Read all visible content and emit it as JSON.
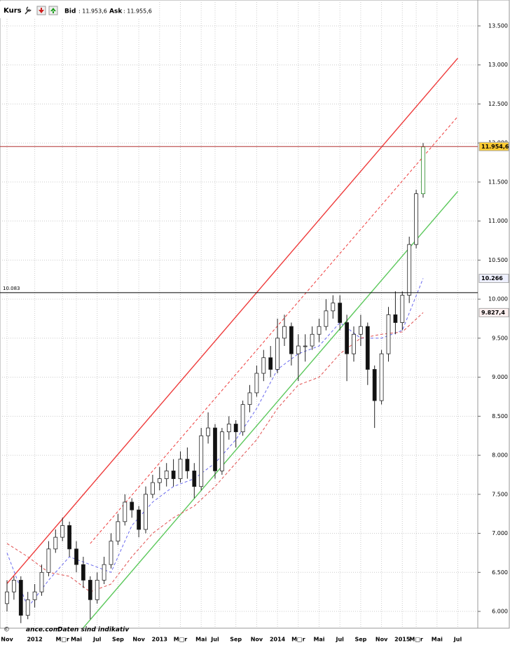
{
  "chart_data": {
    "type": "candlestick",
    "title": "Kurs",
    "bid_label": "Bid",
    "bid_value": ": 11.953,6",
    "ask_label": "Ask",
    "ask_value": ": 11.955,6",
    "source": "ance.com",
    "note": "Daten sind indikativ",
    "grid": true,
    "categories": [
      "Nov",
      null,
      null,
      null,
      "2012",
      null,
      null,
      null,
      "M□r",
      null,
      "Mai",
      null,
      null,
      "Jul",
      null,
      null,
      "Sep",
      null,
      null,
      "Nov",
      null,
      null,
      "2013",
      null,
      null,
      "M□r",
      null,
      null,
      "Mai",
      null,
      "Jul",
      null,
      null,
      "Sep",
      null,
      null,
      "Nov",
      null,
      null,
      "2014",
      null,
      null,
      "M□r",
      null,
      null,
      "Mai",
      null,
      null,
      "Jul",
      null,
      null,
      "Sep",
      null,
      null,
      "Nov",
      null,
      null,
      "2015",
      null,
      "M□r",
      null,
      null,
      "Mai",
      null,
      null,
      "Jul"
    ],
    "open": [
      6100,
      6250,
      6400,
      5950,
      6150,
      6250,
      6500,
      6800,
      6950,
      7100,
      6800,
      6600,
      6400,
      6150,
      6400,
      6600,
      6900,
      7150,
      7400,
      7300,
      7050,
      7500,
      7650,
      7700,
      7800,
      7700,
      7950,
      7800,
      7600,
      8250,
      8350,
      7800,
      8300,
      8400,
      8300,
      8650,
      8800,
      9050,
      9250,
      9100,
      9500,
      9650,
      9300,
      9400,
      9400,
      9550,
      9650,
      9850,
      9950,
      9700,
      9300,
      9550,
      9650,
      9100,
      8700,
      9300,
      9800,
      9700,
      10050,
      10700,
      11350,
      null,
      null,
      null,
      null,
      null
    ],
    "high": [
      6400,
      6450,
      6450,
      6250,
      6350,
      6600,
      6900,
      7050,
      7200,
      7150,
      6900,
      6700,
      6450,
      6500,
      6700,
      7000,
      7250,
      7500,
      7450,
      7350,
      7600,
      7750,
      7850,
      7900,
      7950,
      8050,
      8100,
      7900,
      8350,
      8550,
      8400,
      8350,
      8500,
      8450,
      8700,
      8900,
      9150,
      9350,
      9400,
      9750,
      9800,
      9700,
      9550,
      9550,
      9650,
      9750,
      10000,
      10050,
      10050,
      9800,
      9650,
      9800,
      9700,
      9150,
      9350,
      9900,
      10100,
      10100,
      10800,
      11400,
      12000,
      null,
      null,
      null,
      null,
      null
    ],
    "low": [
      6000,
      6150,
      5850,
      5900,
      6050,
      6200,
      6450,
      6750,
      6900,
      6700,
      6500,
      6300,
      5900,
      6100,
      6350,
      6550,
      6850,
      7100,
      7200,
      6950,
      7000,
      7450,
      7550,
      7600,
      7600,
      7650,
      7700,
      7450,
      7550,
      8150,
      7700,
      7750,
      8200,
      8100,
      8250,
      8550,
      8750,
      8950,
      9000,
      9050,
      9400,
      9150,
      8950,
      9200,
      9350,
      9450,
      9600,
      9750,
      9600,
      8950,
      9200,
      9400,
      8900,
      8350,
      8650,
      9200,
      9550,
      9600,
      9950,
      10650,
      11300,
      null,
      null,
      null,
      null,
      null
    ],
    "close": [
      6250,
      6400,
      5950,
      6150,
      6250,
      6500,
      6800,
      6950,
      7100,
      6800,
      6600,
      6400,
      6150,
      6400,
      6600,
      6900,
      7150,
      7400,
      7300,
      7050,
      7500,
      7650,
      7700,
      7800,
      7700,
      7950,
      7800,
      7600,
      8250,
      8350,
      7800,
      8300,
      8400,
      8300,
      8650,
      8800,
      9050,
      9250,
      9100,
      9500,
      9650,
      9300,
      9400,
      9400,
      9550,
      9650,
      9850,
      9950,
      9700,
      9300,
      9550,
      9650,
      9100,
      8700,
      9300,
      9800,
      9700,
      10050,
      10700,
      11350,
      11950,
      null,
      null,
      null,
      null,
      null
    ],
    "ylim": [
      5785,
      13760
    ],
    "yticks": [
      {
        "value": 6000,
        "label": "6.000"
      },
      {
        "value": 6500,
        "label": "6.500"
      },
      {
        "value": 7000,
        "label": "7.000"
      },
      {
        "value": 7500,
        "label": "7.500"
      },
      {
        "value": 8000,
        "label": "8.000"
      },
      {
        "value": 8500,
        "label": "8.500"
      },
      {
        "value": 9000,
        "label": "9.000"
      },
      {
        "value": 9500,
        "label": "9.500"
      },
      {
        "value": 10000,
        "label": "10.000"
      },
      {
        "value": 10500,
        "label": "10.500"
      },
      {
        "value": 11000,
        "label": "11.000"
      },
      {
        "value": 11500,
        "label": "11.500"
      },
      {
        "value": 12000,
        "label": "12.000"
      },
      {
        "value": 12500,
        "label": "12.500"
      },
      {
        "value": 13000,
        "label": "13.000"
      },
      {
        "value": 13500,
        "label": "13.500"
      }
    ],
    "lines": [
      {
        "color": "#ee3b3b",
        "dash": false,
        "x": [
          0,
          65
        ],
        "values": [
          6356,
          13087
        ]
      },
      {
        "color": "#ee3b3b",
        "dash": true,
        "x": [
          12,
          65
        ],
        "values": [
          6870,
          12340
        ]
      },
      {
        "color": "#5cc85c",
        "dash": false,
        "x": [
          11,
          65
        ],
        "values": [
          5790,
          11380
        ]
      },
      {
        "color": "#6a6aee",
        "dash": true,
        "x": [
          0,
          3,
          6,
          9,
          12,
          15,
          18,
          21,
          24,
          27,
          30,
          33,
          36,
          39,
          42,
          45,
          48,
          51,
          54,
          57,
          60
        ],
        "values": [
          6750,
          6050,
          6400,
          6700,
          6600,
          6500,
          7100,
          7400,
          7600,
          7700,
          7900,
          8200,
          8600,
          9100,
          9300,
          9400,
          9700,
          9500,
          9500,
          9600,
          10266
        ]
      },
      {
        "color": "#e05050",
        "dash": true,
        "x": [
          0,
          3,
          6,
          9,
          12,
          15,
          18,
          21,
          24,
          27,
          30,
          33,
          36,
          39,
          42,
          45,
          48,
          51,
          54,
          57,
          60
        ],
        "values": [
          6870,
          6700,
          6500,
          6450,
          6250,
          6350,
          6700,
          7000,
          7200,
          7350,
          7600,
          7900,
          8200,
          8600,
          8900,
          9000,
          9300,
          9500,
          9550,
          9580,
          9827.4
        ]
      }
    ],
    "hlines": [
      {
        "value": 11954.6,
        "label": "11.954,6",
        "color": "#b03030",
        "line": true,
        "side": "right",
        "box": "#ffcc33"
      },
      {
        "value": 10083,
        "label": "10.083",
        "color": "#000000",
        "line": true,
        "side": "left",
        "box": null
      },
      {
        "value": 10266,
        "label": "10.266",
        "color": "#4040c0",
        "line": false,
        "side": "right",
        "box": "#eef0ff"
      },
      {
        "value": 9827.4,
        "label": "9.827,4",
        "color": "#c03030",
        "line": false,
        "side": "right",
        "box": "#fff0f0"
      }
    ]
  }
}
